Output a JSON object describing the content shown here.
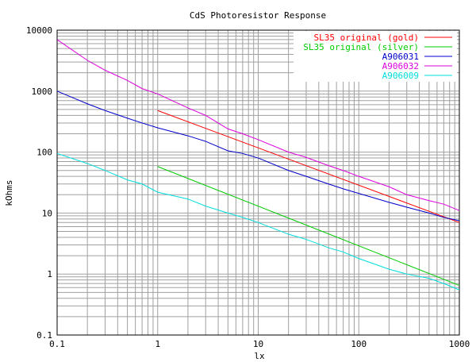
{
  "chart_data": {
    "type": "line",
    "title": "CdS Photoresistor Response",
    "xlabel": "lx",
    "ylabel": "kOhms",
    "x_scale": "log",
    "y_scale": "log",
    "xlim": [
      0.1,
      1000
    ],
    "ylim": [
      0.1,
      10000
    ],
    "x_ticks": [
      {
        "value": 0.1,
        "label": "0.1"
      },
      {
        "value": 1,
        "label": "1"
      },
      {
        "value": 10,
        "label": "10"
      },
      {
        "value": 100,
        "label": "100"
      },
      {
        "value": 1000,
        "label": "1000"
      }
    ],
    "y_ticks": [
      {
        "value": 0.1,
        "label": "0.1"
      },
      {
        "value": 1,
        "label": "1"
      },
      {
        "value": 10,
        "label": "10"
      },
      {
        "value": 100,
        "label": "100"
      },
      {
        "value": 1000,
        "label": "1000"
      },
      {
        "value": 10000,
        "label": "10000"
      }
    ],
    "grid": true,
    "legend_position": "top-right",
    "series": [
      {
        "name": "SL35 original (gold)",
        "color": "#ff0000",
        "x": [
          1,
          1000
        ],
        "y": [
          480,
          7
        ]
      },
      {
        "name": "SL35 original (silver)",
        "color": "#00cc00",
        "x": [
          1,
          1000
        ],
        "y": [
          58,
          0.65
        ]
      },
      {
        "name": "A906031",
        "color": "#0000cc",
        "x": [
          0.1,
          0.2,
          0.3,
          0.5,
          0.7,
          1,
          2,
          3,
          5,
          7,
          10,
          20,
          30,
          50,
          70,
          100,
          200,
          300,
          500,
          700,
          1000
        ],
        "y": [
          1000,
          620,
          480,
          360,
          300,
          250,
          185,
          150,
          105,
          95,
          80,
          50,
          40,
          30,
          25,
          21,
          15,
          12.5,
          10,
          8.5,
          7.5
        ]
      },
      {
        "name": "A906032",
        "color": "#dd00dd",
        "x": [
          0.1,
          0.2,
          0.3,
          0.5,
          0.7,
          1,
          2,
          3,
          5,
          7,
          10,
          20,
          30,
          50,
          70,
          100,
          200,
          300,
          500,
          700,
          1000
        ],
        "y": [
          7000,
          3200,
          2200,
          1500,
          1100,
          900,
          530,
          400,
          240,
          200,
          160,
          100,
          82,
          60,
          50,
          40,
          27,
          20,
          16,
          14,
          11
        ]
      },
      {
        "name": "A906009",
        "color": "#00dddd",
        "x": [
          0.1,
          0.2,
          0.3,
          0.5,
          0.7,
          1,
          2,
          3,
          5,
          7,
          10,
          20,
          30,
          50,
          70,
          100,
          200,
          300,
          500,
          700,
          1000
        ],
        "y": [
          95,
          65,
          50,
          35,
          30,
          22,
          17,
          13,
          10,
          8.5,
          7,
          4.5,
          3.7,
          2.7,
          2.3,
          1.8,
          1.2,
          1.0,
          0.85,
          0.7,
          0.55
        ]
      }
    ]
  }
}
